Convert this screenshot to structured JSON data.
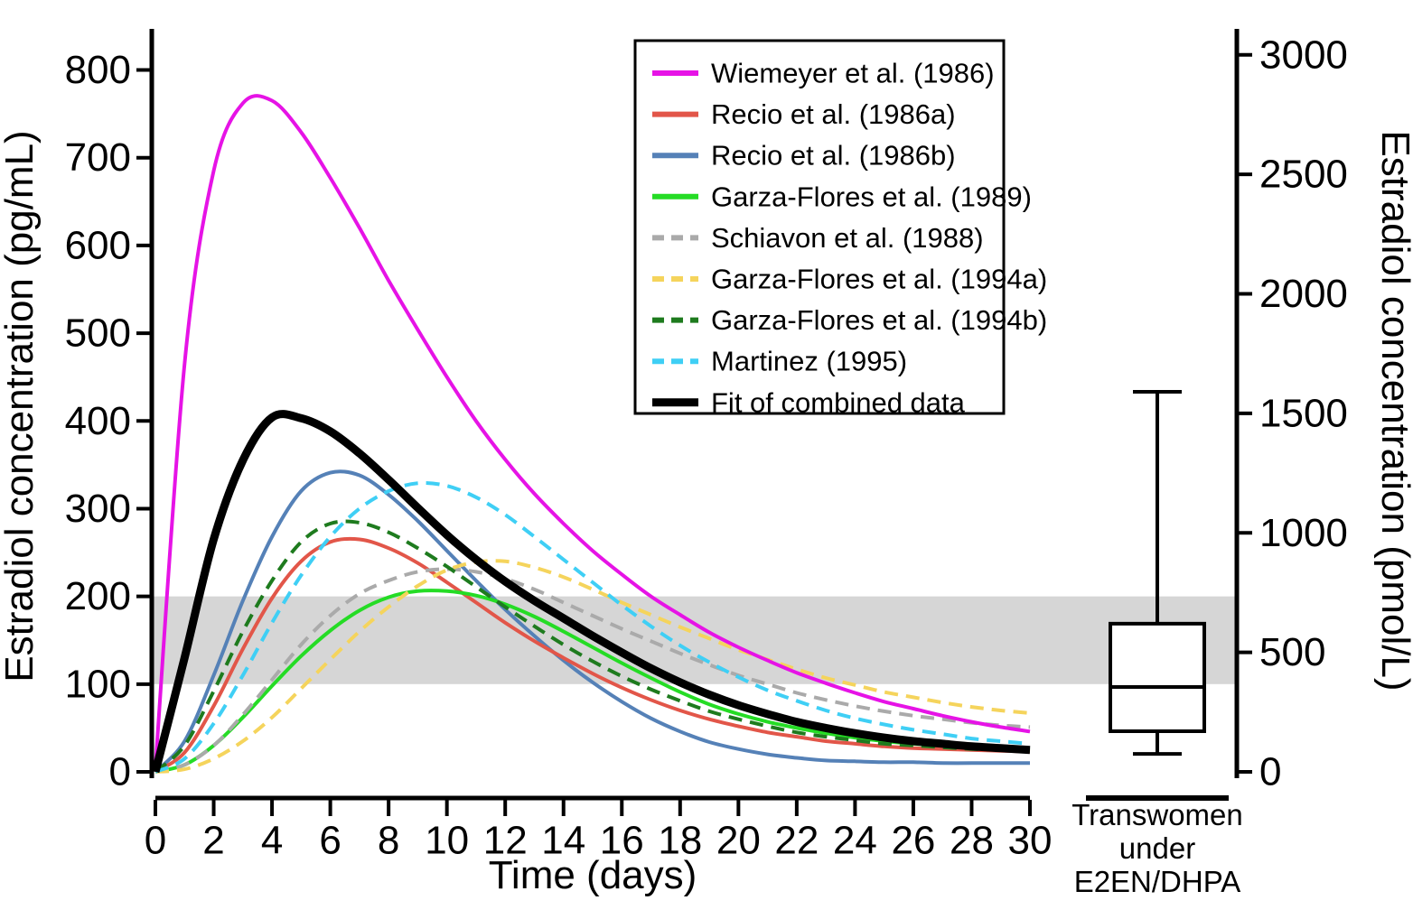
{
  "figure": {
    "background": "#ffffff",
    "band_color": "#d6d6d6",
    "axis_color": "#000000"
  },
  "left_axis": {
    "title": "Estradiol concentration (pg/mL)",
    "unit": "pg/mL",
    "ticks": [
      0,
      100,
      200,
      300,
      400,
      500,
      600,
      700,
      800
    ]
  },
  "right_axis": {
    "title": "Estradiol concentration (pmol/L)",
    "unit": "pmol/L",
    "ticks": [
      0,
      500,
      1000,
      1500,
      2000,
      2500,
      3000
    ]
  },
  "x_axis": {
    "title": "Time (days)",
    "ticks": [
      0,
      2,
      4,
      6,
      8,
      10,
      12,
      14,
      16,
      18,
      20,
      22,
      24,
      26,
      28,
      30
    ]
  },
  "chart_data": {
    "type": "line",
    "title": "",
    "xlabel": "Time (days)",
    "ylabel_left": "Estradiol concentration (pg/mL)",
    "ylabel_right": "Estradiol concentration (pmol/L)",
    "xlim": [
      0,
      30
    ],
    "ylim_left_pg": [
      0,
      800
    ],
    "ylim_right_pmol": [
      0,
      3000
    ],
    "pmol_per_pg": 3.671,
    "grid": false,
    "legend_position": "upper center (framed box)",
    "reference_band_pg": [
      100,
      200
    ],
    "x": [
      0,
      1,
      2,
      3,
      4,
      5,
      6,
      7,
      8,
      9,
      10,
      11,
      12,
      13,
      14,
      15,
      16,
      17,
      18,
      19,
      20,
      21,
      22,
      23,
      24,
      25,
      26,
      27,
      28,
      29,
      30
    ],
    "series": [
      {
        "name": "Wiemeyer et al. (1986)",
        "color": "#E613E6",
        "dash": null,
        "width": 4,
        "values": [
          5,
          465,
          685,
          762,
          765,
          729,
          677,
          620,
          560,
          504,
          450,
          400,
          356,
          317,
          283,
          252,
          225,
          200,
          179,
          159,
          142,
          127,
          113,
          101,
          90,
          80,
          72,
          64,
          57,
          51,
          46
        ]
      },
      {
        "name": "Recio et al. (1986a)",
        "color": "#E25649",
        "dash": null,
        "width": 4,
        "values": [
          0,
          22,
          75,
          140,
          198,
          240,
          262,
          265,
          255,
          238,
          216,
          193,
          170,
          149,
          130,
          112,
          96,
          82,
          70,
          60,
          52,
          45,
          40,
          35,
          32,
          29,
          27,
          26,
          25,
          24,
          23
        ]
      },
      {
        "name": "Recio et al. (1986b)",
        "color": "#5581B7",
        "dash": null,
        "width": 4,
        "values": [
          0,
          35,
          110,
          195,
          268,
          320,
          341,
          338,
          316,
          286,
          252,
          218,
          185,
          155,
          127,
          102,
          80,
          61,
          46,
          34,
          26,
          20,
          16,
          13,
          12,
          11,
          11,
          10,
          10,
          10,
          10
        ]
      },
      {
        "name": "Garza-Flores et al. (1989)",
        "color": "#25DC25",
        "dash": null,
        "width": 4,
        "values": [
          0,
          8,
          30,
          62,
          98,
          132,
          161,
          184,
          199,
          206,
          206,
          201,
          191,
          177,
          160,
          142,
          124,
          107,
          91,
          77,
          66,
          57,
          50,
          44,
          39,
          35,
          32,
          30,
          28,
          26,
          25
        ]
      },
      {
        "name": "Schiavon et al. (1988)",
        "color": "#AAAAAA",
        "dash": "15 9",
        "width": 4,
        "values": [
          0,
          8,
          30,
          65,
          105,
          145,
          178,
          203,
          218,
          228,
          231,
          228,
          220,
          208,
          193,
          178,
          163,
          149,
          135,
          122,
          110,
          100,
          90,
          82,
          75,
          69,
          64,
          60,
          56,
          53,
          51
        ]
      },
      {
        "name": "Garza-Flores et al. (1994a)",
        "color": "#F5D45C",
        "dash": "15 9",
        "width": 4,
        "values": [
          0,
          3,
          15,
          35,
          62,
          95,
          128,
          160,
          188,
          212,
          230,
          239,
          240,
          233,
          222,
          208,
          193,
          179,
          165,
          152,
          139,
          128,
          117,
          107,
          99,
          91,
          85,
          79,
          74,
          70,
          67
        ]
      },
      {
        "name": "Garza-Flores et al. (1994b)",
        "color": "#1E7B1E",
        "dash": "15 9",
        "width": 4,
        "values": [
          0,
          30,
          92,
          160,
          218,
          262,
          283,
          284,
          273,
          255,
          234,
          211,
          188,
          166,
          145,
          126,
          109,
          94,
          81,
          69,
          60,
          52,
          45,
          40,
          36,
          32,
          30,
          28,
          26,
          25,
          24
        ]
      },
      {
        "name": "Martinez (1995)",
        "color": "#3FCFF5",
        "dash": "15 9",
        "width": 4,
        "values": [
          0,
          15,
          55,
          110,
          170,
          224,
          268,
          300,
          320,
          329,
          326,
          313,
          293,
          268,
          242,
          216,
          190,
          166,
          144,
          125,
          108,
          93,
          81,
          70,
          61,
          54,
          48,
          43,
          38,
          35,
          32
        ]
      },
      {
        "name": "Fit of combined data",
        "color": "#000000",
        "dash": null,
        "width": 9,
        "values": [
          0,
          130,
          265,
          355,
          404,
          403,
          388,
          363,
          333,
          301,
          270,
          242,
          217,
          195,
          175,
          155,
          136,
          118,
          102,
          88,
          76,
          66,
          57,
          50,
          44,
          39,
          35,
          32,
          29,
          27,
          25
        ]
      }
    ],
    "boxplot": {
      "group": "Transwomen under E2EN/DHPA",
      "label_lines": [
        "Transwomen",
        "under",
        "E2EN/DHPA"
      ],
      "units": "pmol/L",
      "whisker_low": 75,
      "q1": 170,
      "median": 355,
      "q3": 620,
      "whisker_high": 1590
    }
  }
}
